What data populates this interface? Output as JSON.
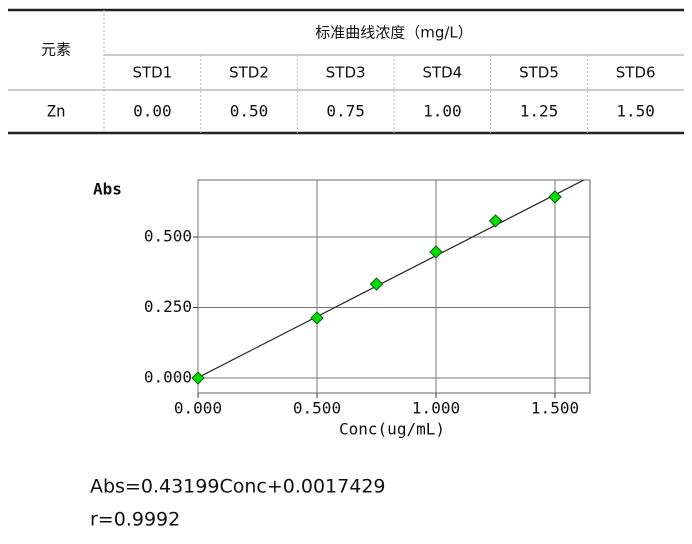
{
  "table": {
    "element_header": "元素",
    "group_header": "标准曲线浓度（mg/L）",
    "columns": [
      "STD1",
      "STD2",
      "STD3",
      "STD4",
      "STD5",
      "STD6"
    ],
    "rows": [
      [
        "Zn",
        "0.00",
        "0.50",
        "0.75",
        "1.00",
        "1.25",
        "1.50"
      ]
    ]
  },
  "chart_data": {
    "type": "scatter",
    "y_label": "Abs",
    "x_label": "Conc(ug/mL)",
    "x": [
      0,
      0.5,
      0.75,
      1.0,
      1.25,
      1.5
    ],
    "series": [
      {
        "name": "Zn",
        "color": "#00e000",
        "values": [
          0.0,
          0.213,
          0.333,
          0.447,
          0.557,
          0.642
        ]
      }
    ],
    "xlim": [
      0,
      1.647
    ],
    "ylim": [
      -0.053,
      0.702
    ],
    "xticks": [
      {
        "value": 0,
        "label": "0.000"
      },
      {
        "value": 0.5,
        "label": "0.500"
      },
      {
        "value": 1.0,
        "label": "1.000"
      },
      {
        "value": 1.5,
        "label": "1.500"
      }
    ],
    "yticks": [
      {
        "value": 0,
        "label": "0.000"
      },
      {
        "value": 0.25,
        "label": "0.250"
      },
      {
        "value": 0.5,
        "label": "0.500"
      }
    ],
    "grid": true,
    "annotations": [
      "Abs=0.43199Conc+0.0017429",
      "r=0.9992"
    ]
  }
}
